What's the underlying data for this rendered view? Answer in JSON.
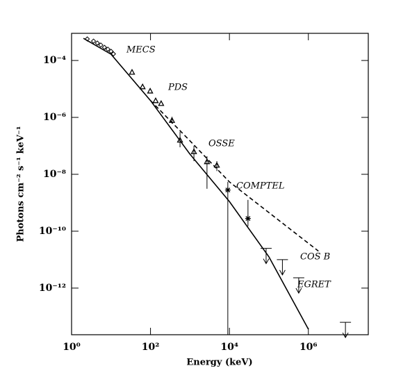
{
  "chart_data": {
    "type": "scatter",
    "xlabel": "Energy (keV)",
    "ylabel": "Photons cm⁻² s⁻¹ keV⁻¹",
    "log_x": true,
    "log_y": true,
    "xlim": [
      1,
      33000000
    ],
    "ylim": [
      2.3e-14,
      0.0009
    ],
    "xticks": [
      {
        "value": 1,
        "label": "10⁰"
      },
      {
        "value": 100,
        "label": "10²"
      },
      {
        "value": 10000,
        "label": "10⁴"
      },
      {
        "value": 1000000,
        "label": "10⁶"
      }
    ],
    "yticks": [
      {
        "value": 0.0001,
        "label": "10⁻⁴"
      },
      {
        "value": 1e-06,
        "label": "10⁻⁶"
      },
      {
        "value": 1e-08,
        "label": "10⁻⁸"
      },
      {
        "value": 1e-10,
        "label": "10⁻¹⁰"
      },
      {
        "value": 1e-12,
        "label": "10⁻¹²"
      }
    ],
    "annotations": [
      "MECS",
      "PDS",
      "OSSE",
      "COMPTEL",
      "COS B",
      "EGRET"
    ],
    "lines": [
      {
        "style": "solid",
        "color": "#000000",
        "x": [
          2,
          10,
          100,
          1000,
          10000,
          100000,
          1000000
        ],
        "values": [
          0.0006,
          0.000166,
          3.9e-06,
          5.1e-08,
          1.1e-09,
          1.26e-11,
          3.6e-14
        ]
      },
      {
        "style": "dashed",
        "color": "#000000",
        "x": [
          100,
          1000,
          10000,
          1800000
        ],
        "values": [
          3.9e-06,
          1.5e-07,
          5.4e-09,
          2e-11
        ]
      }
    ],
    "series": [
      {
        "marker": "diamond",
        "color": "#000000",
        "x": [
          2.5,
          3.6,
          4.5,
          5.5,
          6.8,
          8.3,
          10,
          11.5
        ],
        "values": [
          0.00057,
          0.00048,
          0.00041,
          0.00035,
          0.00029,
          0.00025,
          0.00021,
          0.00017
        ]
      },
      {
        "marker": "triangle",
        "color": "#000000",
        "x": [
          34,
          63,
          98,
          135,
          186
        ],
        "values": [
          3.9e-05,
          1.2e-05,
          8.5e-06,
          3.9e-06,
          3.1e-06
        ]
      },
      {
        "marker": "triangle",
        "color": "#000000",
        "x": [
          350,
          560,
          1260,
          2700,
          4800
        ],
        "values": [
          7.9e-07,
          1.6e-07,
          6.3e-08,
          2.8e-08,
          2.1e-08
        ],
        "low": [
          6e-07,
          8.9e-08,
          2.9e-08,
          3.1e-09,
          1.3e-08
        ],
        "high": [
          1.05e-06,
          3.1e-07,
          1e-07,
          4.3e-08,
          2.9e-08
        ]
      },
      {
        "marker": "star",
        "color": "#000000",
        "x": [
          9100,
          29500
        ],
        "values": [
          2.8e-09,
          2.8e-10
        ],
        "low": [
          2.3e-14,
          1.5e-10
        ],
        "high": [
          5.4e-09,
          1.26e-09
        ]
      },
      {
        "marker": "upper-limit",
        "color": "#000000",
        "x": [
          85000,
          220000,
          570000,
          8700000
        ],
        "values": [
          2.5e-11,
          1e-11,
          2.3e-12,
          6.3e-14
        ]
      }
    ]
  }
}
